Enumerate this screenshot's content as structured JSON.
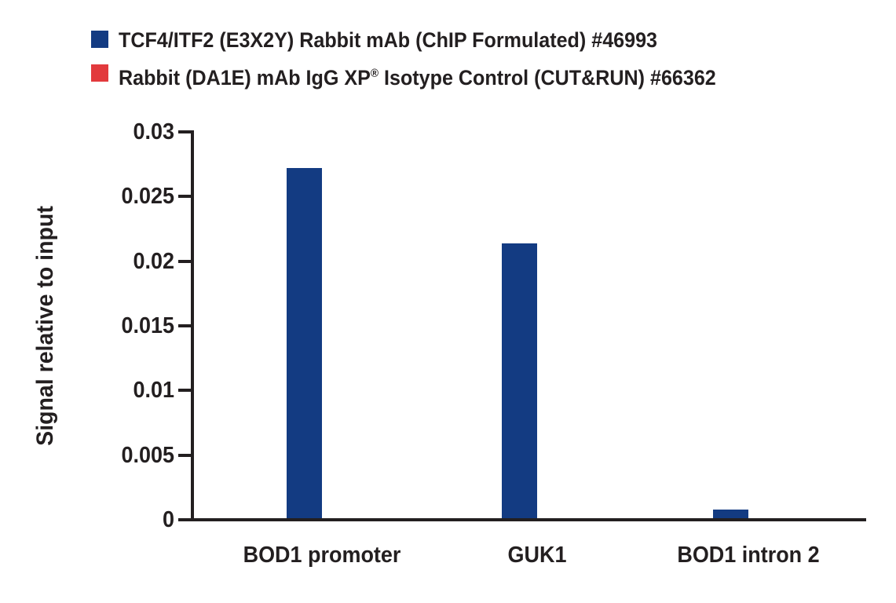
{
  "figure": {
    "background": "#ffffff",
    "text_color": "#231f20",
    "axis_color": "#231f20"
  },
  "legend": {
    "items": [
      {
        "swatch_color": "#133b82",
        "label": "TCF4/ITF2 (E3X2Y) Rabbit mAb (ChIP Formulated) #46993"
      },
      {
        "swatch_color": "#e23a3d",
        "label_pre": "Rabbit (DA1E) mAb IgG XP",
        "label_sup": "®",
        "label_post": " Isotype Control (CUT&RUN) #66362"
      }
    ]
  },
  "chart_data": {
    "type": "bar",
    "categories": [
      "BOD1 promoter",
      "GUK1",
      "BOD1 intron 2"
    ],
    "series": [
      {
        "name": "TCF4/ITF2 (E3X2Y) Rabbit mAb (ChIP Formulated) #46993",
        "color": "#133b82",
        "values": [
          0.0272,
          0.0214,
          0.0008
        ]
      },
      {
        "name": "Rabbit (DA1E) mAb IgG XP® Isotype Control (CUT&RUN) #66362",
        "color": "#e23a3d",
        "values": [
          0,
          0,
          0
        ]
      }
    ],
    "title": "",
    "xlabel": "",
    "ylabel": "Signal relative to input",
    "ylim": [
      0,
      0.03
    ],
    "yticks": [
      0,
      0.005,
      0.01,
      0.015,
      0.02,
      0.025,
      0.03
    ],
    "ytick_labels": [
      "0",
      "0.005",
      "0.01",
      "0.015",
      "0.02",
      "0.025",
      "0.03"
    ],
    "grid": false,
    "legend_position": "top-left"
  }
}
